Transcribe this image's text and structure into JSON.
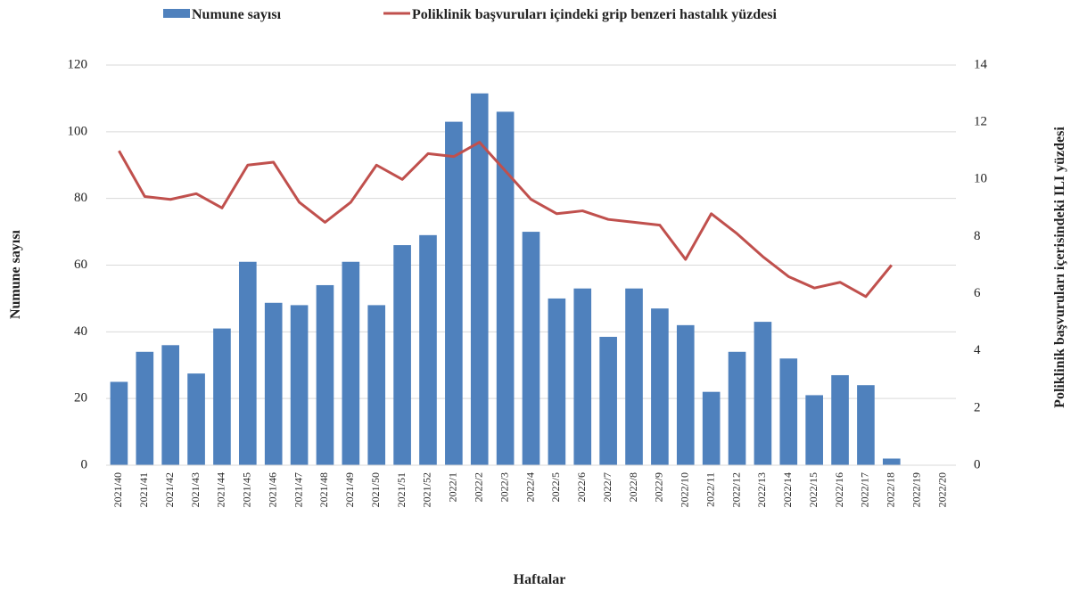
{
  "chart_data": {
    "type": "bar-line",
    "x_label": "Haftalar",
    "y_label": "Numune sayısı",
    "y2_label": "Poliklinik başvuruları içerisindeki ILI yüzdesi",
    "categories": [
      "2021/40",
      "2021/41",
      "2021/42",
      "2021/43",
      "2021/44",
      "2021/45",
      "2021/46",
      "2021/47",
      "2021/48",
      "2021/49",
      "2021/50",
      "2021/51",
      "2021/52",
      "2022/1",
      "2022/2",
      "2022/3",
      "2022/4",
      "2022/5",
      "2022/6",
      "2022/7",
      "2022/8",
      "2022/9",
      "2022/10",
      "2022/11",
      "2022/12",
      "2022/13",
      "2022/14",
      "2022/15",
      "2022/16",
      "2022/17",
      "2022/18",
      "2022/19",
      "2022/20"
    ],
    "series": [
      {
        "name": "Numune sayısı",
        "type": "bar",
        "color": "#4f81bd",
        "values": [
          25,
          34,
          36,
          27.5,
          41,
          61,
          48.7,
          48,
          54,
          61,
          48,
          66,
          69,
          103,
          111.5,
          106,
          70,
          50,
          53,
          38.5,
          53,
          47,
          42,
          22,
          34,
          43,
          32,
          21,
          27,
          24,
          2,
          null,
          null
        ]
      },
      {
        "name": "Poliklinik başvuruları içindeki grip benzeri hastalık yüzdesi",
        "type": "line",
        "axis": "y2",
        "color": "#c0504d",
        "values": [
          11.0,
          9.4,
          9.3,
          9.5,
          9.0,
          10.5,
          10.6,
          9.2,
          8.5,
          9.2,
          10.5,
          10.0,
          10.9,
          10.8,
          11.3,
          10.3,
          9.3,
          8.8,
          8.9,
          8.6,
          8.5,
          8.4,
          7.2,
          8.8,
          8.1,
          7.3,
          6.6,
          6.2,
          6.4,
          5.9,
          7.0,
          null,
          null
        ]
      }
    ],
    "ylim": [
      0,
      120
    ],
    "yticks": [
      0,
      20,
      40,
      60,
      80,
      100,
      120
    ],
    "y2lim": [
      0,
      14
    ],
    "y2ticks": [
      0,
      2,
      4,
      6,
      8,
      10,
      12,
      14
    ],
    "grid": true
  }
}
